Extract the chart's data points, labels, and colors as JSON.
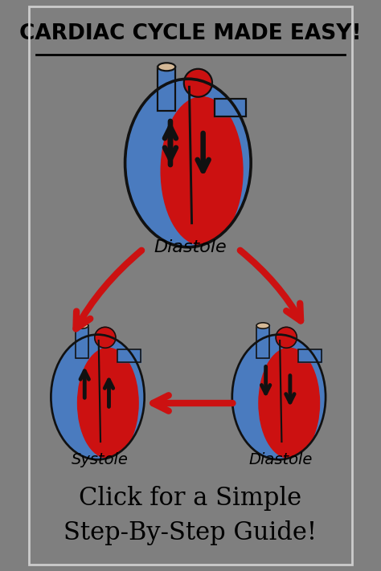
{
  "bg_color": "#7f7f7f",
  "border_color": "#cccccc",
  "title": "CARDIAC CYCLE MADE EASY!",
  "subtitle": "Click for a Simple\nStep-By-Step Guide!",
  "label_diastole_top": "Diastole",
  "label_diastole_bottom": "Diastole",
  "label_systole": "Systole",
  "heart_blue": "#4a7bbf",
  "heart_red": "#cc1111",
  "heart_outline": "#111111",
  "arrow_red": "#cc1111",
  "arrow_black": "#111111",
  "vessel_beige": "#d4b896"
}
